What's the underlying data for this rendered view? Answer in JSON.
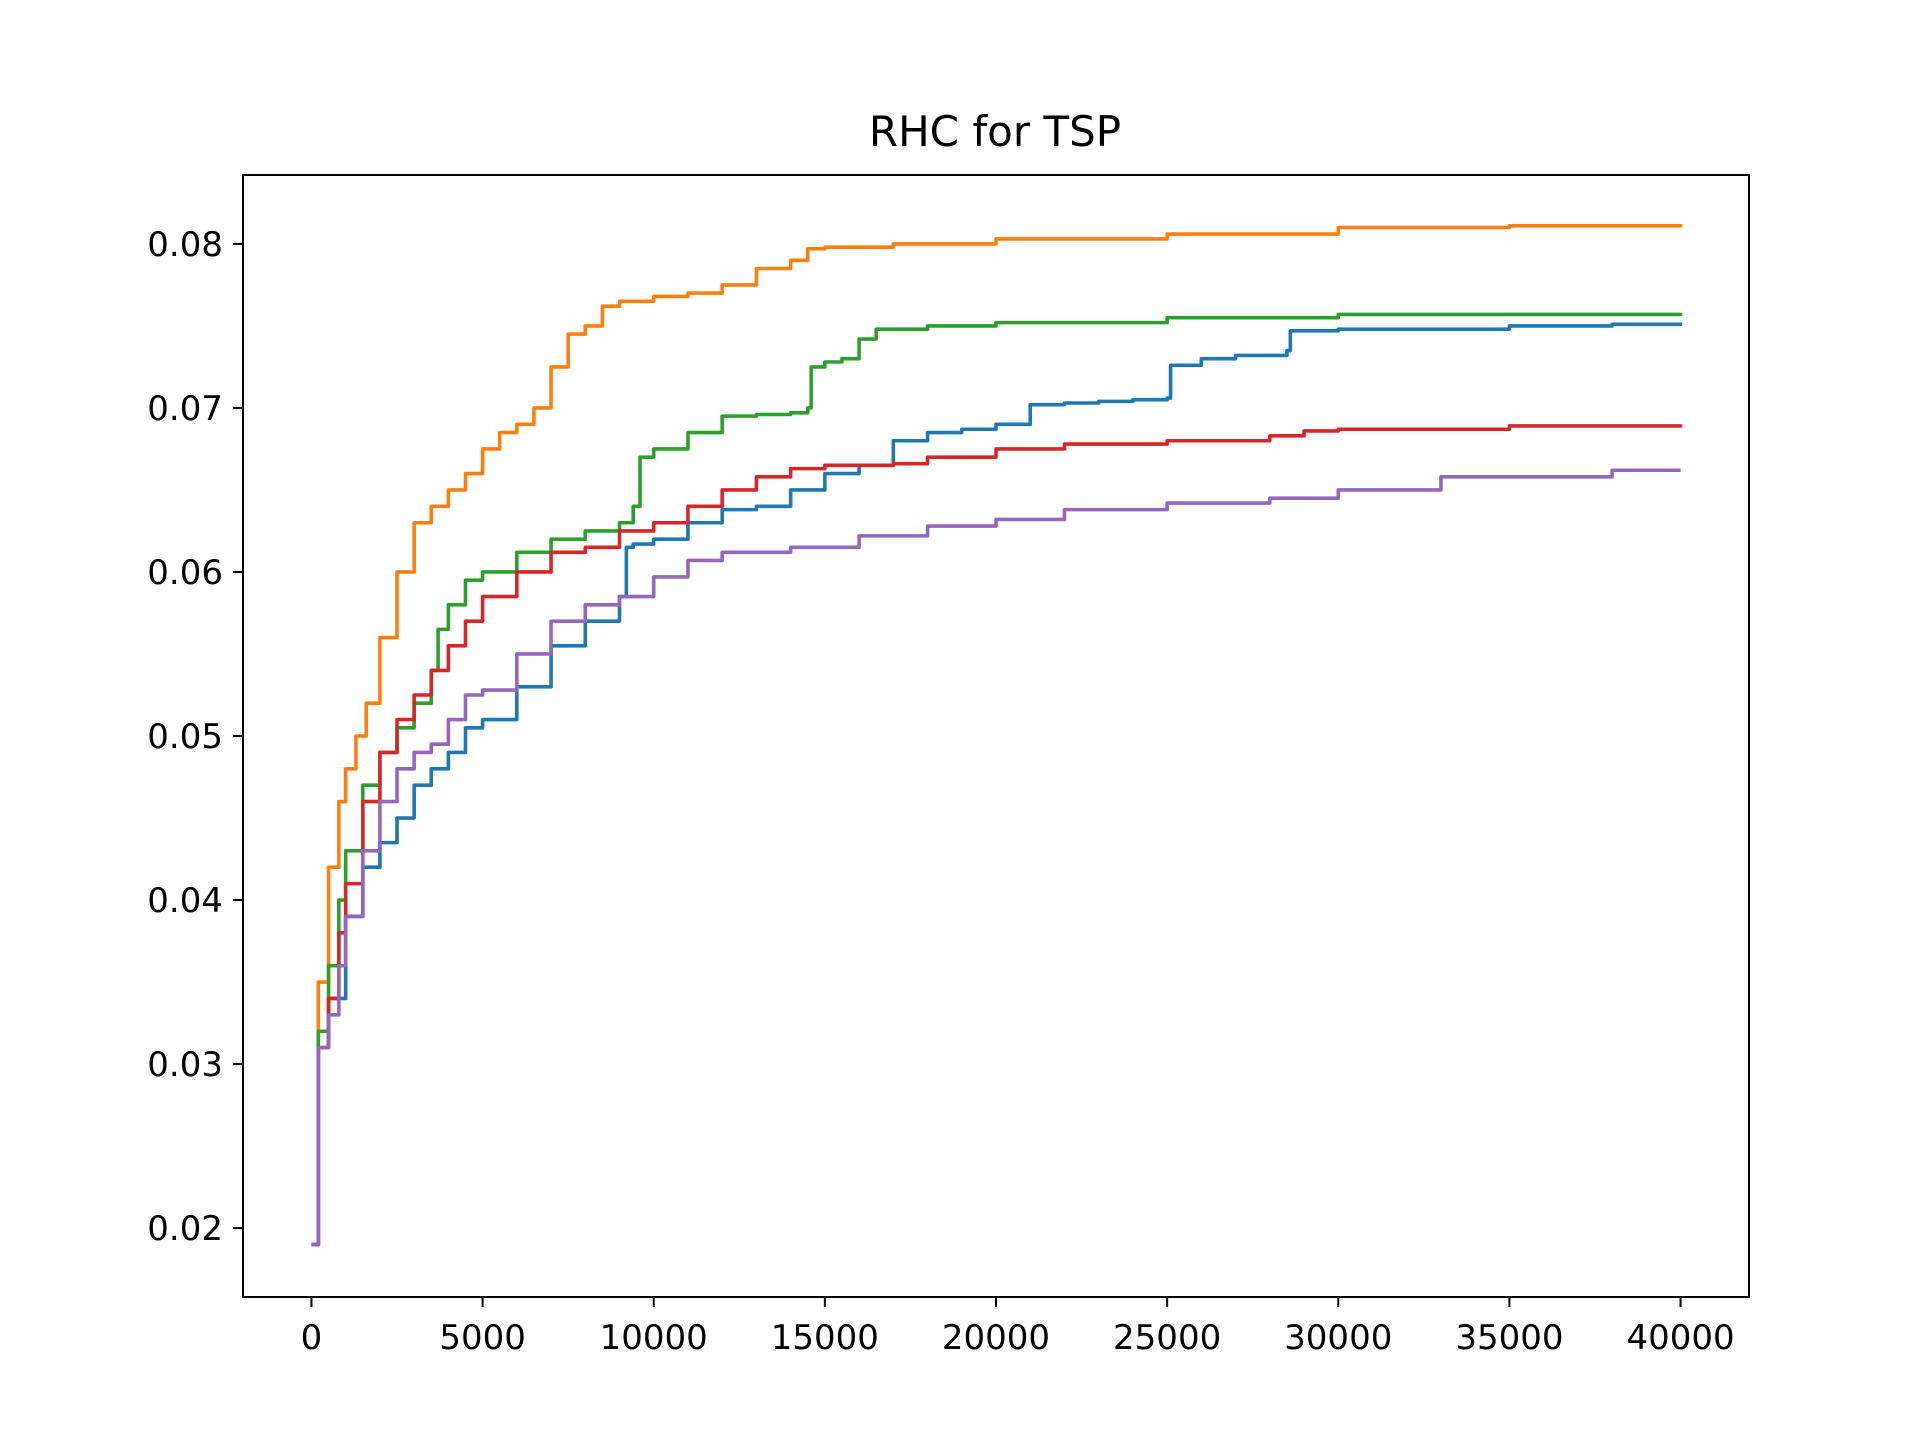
{
  "chart_data": {
    "type": "line",
    "title": "RHC for TSP",
    "xlabel": "",
    "ylabel": "",
    "xlim": [
      -2000,
      42000
    ],
    "ylim": [
      0.0158,
      0.0842
    ],
    "xticks": [
      0,
      5000,
      10000,
      15000,
      20000,
      25000,
      30000,
      35000,
      40000
    ],
    "xtick_labels": [
      "0",
      "5000",
      "10000",
      "15000",
      "20000",
      "25000",
      "30000",
      "35000",
      "40000"
    ],
    "yticks": [
      0.02,
      0.03,
      0.04,
      0.05,
      0.06,
      0.07,
      0.08
    ],
    "ytick_labels": [
      "0.02",
      "0.03",
      "0.04",
      "0.05",
      "0.06",
      "0.07",
      "0.08"
    ],
    "grid": false,
    "legend": "none",
    "series": [
      {
        "color": "#1f77b4",
        "x": [
          0,
          200,
          500,
          1000,
          1500,
          2000,
          2500,
          3000,
          3500,
          4000,
          4500,
          5000,
          6000,
          7000,
          8000,
          9000,
          9200,
          9400,
          10000,
          11000,
          12000,
          13000,
          14000,
          15000,
          16000,
          17000,
          18000,
          19000,
          20000,
          21000,
          22000,
          23000,
          24000,
          25000,
          25100,
          26000,
          27000,
          28500,
          28600,
          30000,
          35000,
          38000,
          40000
        ],
        "y": [
          0.019,
          0.031,
          0.034,
          0.039,
          0.042,
          0.0435,
          0.045,
          0.047,
          0.048,
          0.049,
          0.0505,
          0.051,
          0.053,
          0.0555,
          0.057,
          0.0585,
          0.0615,
          0.0617,
          0.062,
          0.063,
          0.0638,
          0.064,
          0.065,
          0.066,
          0.0665,
          0.068,
          0.0685,
          0.0687,
          0.069,
          0.0702,
          0.0703,
          0.0704,
          0.0705,
          0.0706,
          0.0726,
          0.073,
          0.0732,
          0.0735,
          0.0747,
          0.0748,
          0.075,
          0.0751,
          0.0752
        ]
      },
      {
        "color": "#ff7f0e",
        "x": [
          0,
          200,
          500,
          800,
          1000,
          1300,
          1600,
          2000,
          2500,
          3000,
          3500,
          4000,
          4500,
          5000,
          5500,
          6000,
          6500,
          7000,
          7500,
          8000,
          8500,
          9000,
          10000,
          11000,
          12000,
          13000,
          14000,
          14500,
          15000,
          17000,
          20000,
          25000,
          30000,
          35000,
          40000
        ],
        "y": [
          0.019,
          0.035,
          0.042,
          0.046,
          0.048,
          0.05,
          0.052,
          0.056,
          0.06,
          0.063,
          0.064,
          0.065,
          0.066,
          0.0675,
          0.0685,
          0.069,
          0.07,
          0.0725,
          0.0745,
          0.075,
          0.0762,
          0.0765,
          0.0768,
          0.077,
          0.0775,
          0.0785,
          0.079,
          0.0797,
          0.0798,
          0.08,
          0.0803,
          0.0806,
          0.081,
          0.0811,
          0.0812
        ]
      },
      {
        "color": "#2ca02c",
        "x": [
          0,
          200,
          500,
          800,
          1000,
          1500,
          2000,
          2500,
          3000,
          3500,
          3700,
          4000,
          4500,
          5000,
          6000,
          7000,
          8000,
          9000,
          9400,
          9600,
          10000,
          11000,
          12000,
          13000,
          14000,
          14500,
          14600,
          15000,
          15500,
          16000,
          16500,
          18000,
          20000,
          25000,
          30000,
          40000
        ],
        "y": [
          0.019,
          0.032,
          0.036,
          0.04,
          0.043,
          0.047,
          0.049,
          0.0505,
          0.052,
          0.054,
          0.0565,
          0.058,
          0.0595,
          0.06,
          0.0612,
          0.062,
          0.0625,
          0.063,
          0.064,
          0.067,
          0.0675,
          0.0685,
          0.0695,
          0.0696,
          0.0697,
          0.07,
          0.0725,
          0.0728,
          0.073,
          0.0742,
          0.0748,
          0.075,
          0.0752,
          0.0755,
          0.0757,
          0.0758
        ]
      },
      {
        "color": "#d62728",
        "x": [
          0,
          200,
          500,
          800,
          1000,
          1500,
          2000,
          2500,
          3000,
          3500,
          4000,
          4500,
          5000,
          6000,
          7000,
          8000,
          9000,
          10000,
          11000,
          12000,
          13000,
          14000,
          15000,
          17000,
          18000,
          20000,
          22000,
          25000,
          28000,
          29000,
          30000,
          35000,
          40000
        ],
        "y": [
          0.019,
          0.031,
          0.034,
          0.038,
          0.041,
          0.046,
          0.049,
          0.051,
          0.0525,
          0.054,
          0.0555,
          0.057,
          0.0585,
          0.06,
          0.0612,
          0.0615,
          0.0625,
          0.063,
          0.064,
          0.065,
          0.0658,
          0.0663,
          0.0665,
          0.0666,
          0.067,
          0.0675,
          0.0678,
          0.068,
          0.0683,
          0.0686,
          0.0687,
          0.0689,
          0.069
        ]
      },
      {
        "color": "#9467bd",
        "x": [
          0,
          200,
          500,
          800,
          1000,
          1500,
          2000,
          2500,
          3000,
          3500,
          4000,
          4500,
          5000,
          6000,
          7000,
          8000,
          9000,
          10000,
          11000,
          12000,
          14000,
          16000,
          18000,
          20000,
          22000,
          25000,
          28000,
          30000,
          33000,
          38000,
          40000
        ],
        "y": [
          0.019,
          0.031,
          0.033,
          0.036,
          0.039,
          0.043,
          0.046,
          0.048,
          0.049,
          0.0495,
          0.051,
          0.0525,
          0.0528,
          0.055,
          0.057,
          0.058,
          0.0585,
          0.0597,
          0.0607,
          0.0612,
          0.0615,
          0.0622,
          0.0628,
          0.0632,
          0.0638,
          0.0642,
          0.0645,
          0.065,
          0.0658,
          0.0662,
          0.0662
        ]
      }
    ]
  }
}
